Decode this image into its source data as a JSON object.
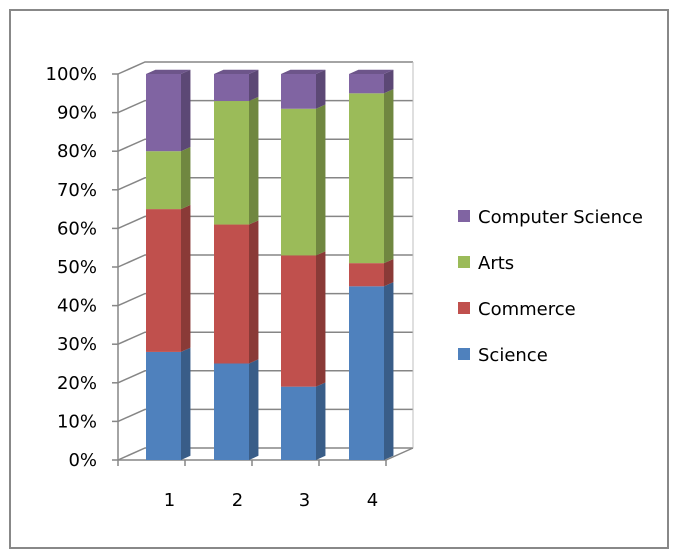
{
  "chart_data": {
    "type": "bar",
    "stacked": true,
    "percent_stacked": true,
    "three_d": true,
    "categories": [
      "1",
      "2",
      "3",
      "4"
    ],
    "series": [
      {
        "name": "Science",
        "values": [
          28,
          25,
          19,
          45
        ],
        "color": "#4F81BD"
      },
      {
        "name": "Commerce",
        "values": [
          37,
          36,
          34,
          6
        ],
        "color": "#C0504D"
      },
      {
        "name": "Arts",
        "values": [
          15,
          32,
          38,
          44
        ],
        "color": "#9BBB59"
      },
      {
        "name": "Computer Science",
        "values": [
          20,
          7,
          9,
          5
        ],
        "color": "#8064A2"
      }
    ],
    "y_ticks": [
      "0%",
      "10%",
      "20%",
      "30%",
      "40%",
      "50%",
      "60%",
      "70%",
      "80%",
      "90%",
      "100%"
    ],
    "ylim": [
      0,
      100
    ],
    "grid": true,
    "legend_position": "right",
    "legend_order": [
      "Computer Science",
      "Arts",
      "Commerce",
      "Science"
    ]
  }
}
